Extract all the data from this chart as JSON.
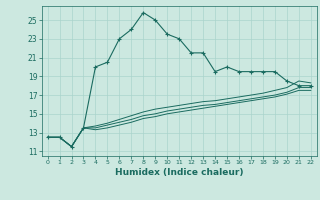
{
  "xlabel": "Humidex (Indice chaleur)",
  "bg_color": "#cce8e0",
  "grid_color": "#aad4cc",
  "line_color": "#1a6b60",
  "xlim": [
    -0.5,
    22.5
  ],
  "ylim": [
    10.5,
    26.5
  ],
  "xticks": [
    0,
    1,
    2,
    3,
    4,
    5,
    6,
    7,
    8,
    9,
    10,
    11,
    12,
    13,
    14,
    15,
    16,
    17,
    18,
    19,
    20,
    21,
    22
  ],
  "yticks": [
    11,
    13,
    15,
    17,
    19,
    21,
    23,
    25
  ],
  "main_x": [
    0,
    1,
    2,
    3,
    4,
    5,
    6,
    7,
    8,
    9,
    10,
    11,
    12,
    13,
    14,
    15,
    16,
    17,
    18,
    19,
    20,
    21,
    22
  ],
  "main_y": [
    12.5,
    12.5,
    11.5,
    13.5,
    20.0,
    20.5,
    23.0,
    24.0,
    25.8,
    25.0,
    23.5,
    23.0,
    21.5,
    21.5,
    19.5,
    20.0,
    19.5,
    19.5,
    19.5,
    19.5,
    18.5,
    18.0,
    18.0
  ],
  "line2_x": [
    0,
    1,
    2,
    3,
    4,
    5,
    6,
    7,
    8,
    9,
    10,
    11,
    12,
    13,
    14,
    15,
    16,
    17,
    18,
    19,
    20,
    21,
    22
  ],
  "line2_y": [
    12.5,
    12.5,
    11.5,
    13.5,
    13.7,
    14.0,
    14.4,
    14.8,
    15.2,
    15.5,
    15.7,
    15.9,
    16.1,
    16.3,
    16.4,
    16.6,
    16.8,
    17.0,
    17.2,
    17.5,
    17.8,
    18.5,
    18.3
  ],
  "line3_x": [
    0,
    1,
    2,
    3,
    4,
    5,
    6,
    7,
    8,
    9,
    10,
    11,
    12,
    13,
    14,
    15,
    16,
    17,
    18,
    19,
    20,
    21,
    22
  ],
  "line3_y": [
    12.5,
    12.5,
    11.5,
    13.5,
    13.5,
    13.8,
    14.1,
    14.4,
    14.8,
    15.0,
    15.3,
    15.5,
    15.7,
    15.9,
    16.0,
    16.2,
    16.4,
    16.6,
    16.8,
    17.0,
    17.3,
    17.8,
    17.8
  ],
  "line4_x": [
    0,
    1,
    2,
    3,
    4,
    5,
    6,
    7,
    8,
    9,
    10,
    11,
    12,
    13,
    14,
    15,
    16,
    17,
    18,
    19,
    20,
    21,
    22
  ],
  "line4_y": [
    12.5,
    12.5,
    11.5,
    13.5,
    13.3,
    13.5,
    13.8,
    14.1,
    14.5,
    14.7,
    15.0,
    15.2,
    15.4,
    15.6,
    15.8,
    16.0,
    16.2,
    16.4,
    16.6,
    16.8,
    17.1,
    17.5,
    17.5
  ]
}
